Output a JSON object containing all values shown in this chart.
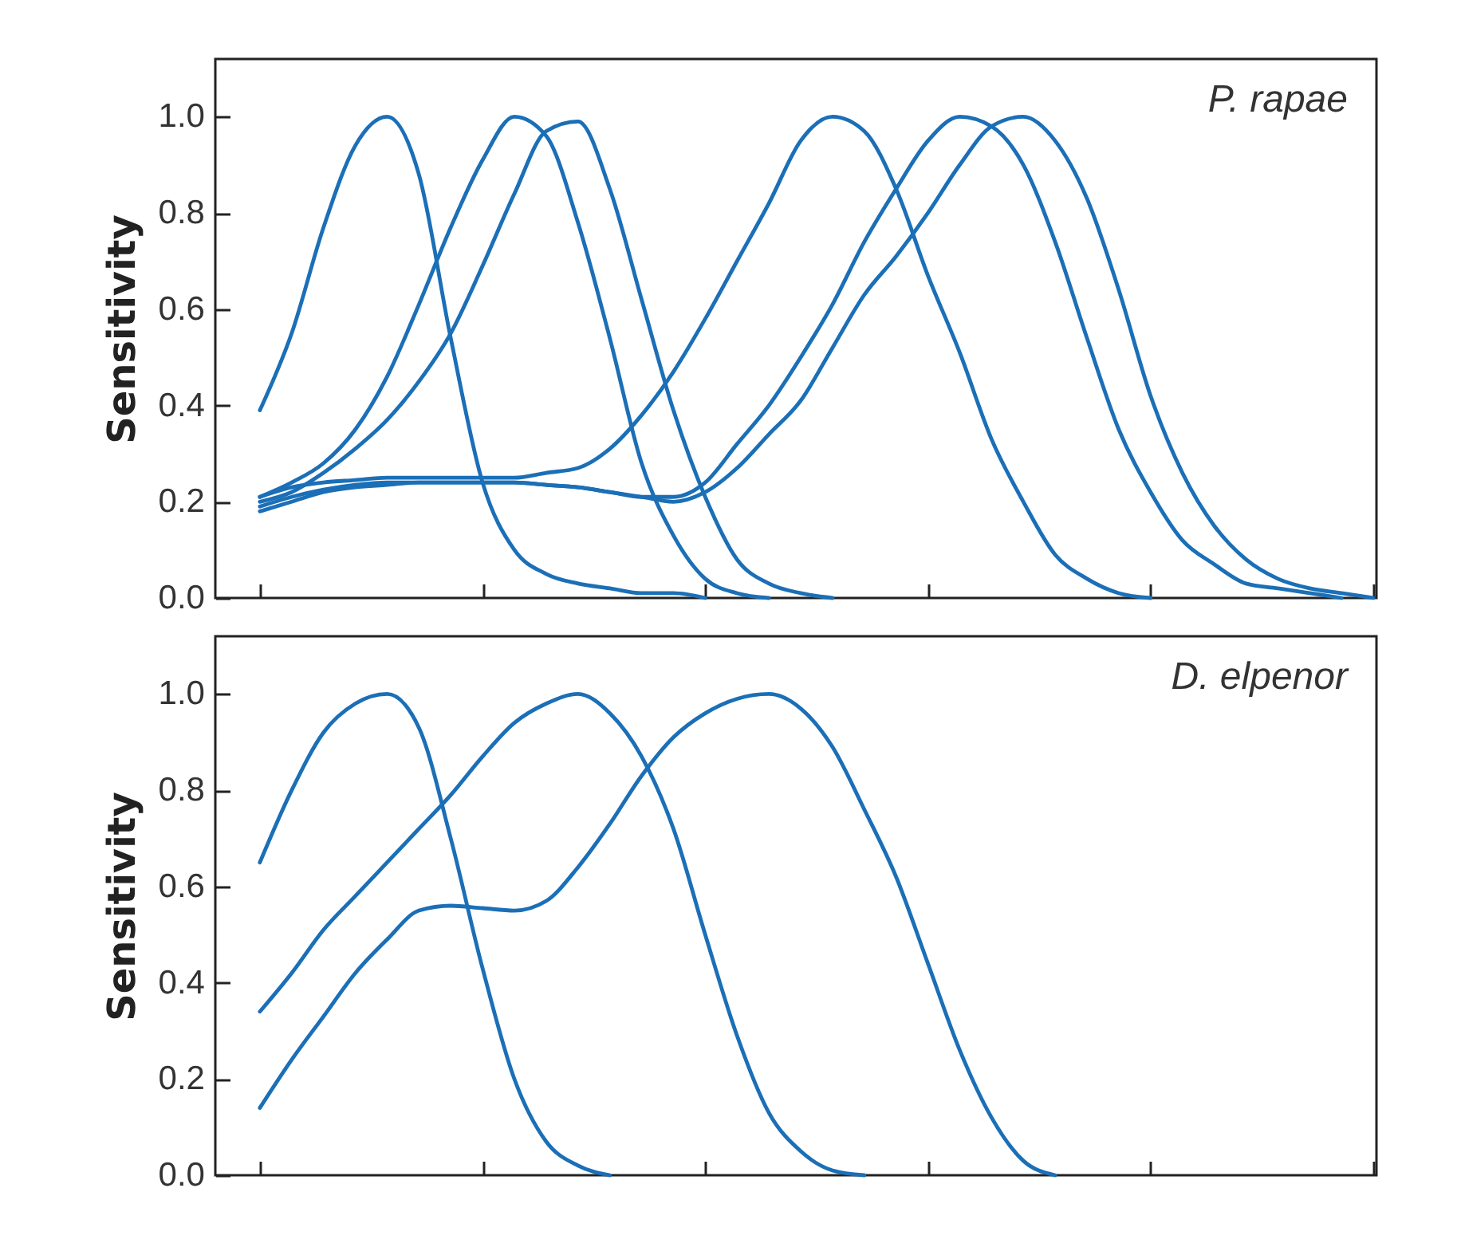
{
  "chart_data": [
    {
      "type": "line",
      "ylabel": "Sensitivity",
      "annotations": [
        "P. rapae"
      ],
      "tick_labels": "y",
      "ylim": [
        0,
        1.12
      ],
      "yticks": [
        {
          "value": 0,
          "label": "0.0"
        },
        {
          "value": 0.2,
          "label": "0.2"
        },
        {
          "value": 0.4,
          "label": "0.4"
        },
        {
          "value": 0.6,
          "label": "0.6"
        },
        {
          "value": 0.8,
          "label": "0.8"
        },
        {
          "value": 1,
          "label": "1.0"
        }
      ],
      "categories": [
        null,
        null,
        null,
        null,
        null,
        null,
        null,
        null,
        null,
        null,
        null,
        null,
        null,
        null,
        null,
        null,
        null,
        null,
        null,
        null,
        null,
        null,
        null,
        null,
        null,
        null,
        null,
        null,
        null,
        null,
        null,
        null,
        null,
        null,
        null,
        null
      ],
      "series": [
        {
          "color": "#1b6fb7",
          "values": [
            0.39,
            0.55,
            0.77,
            0.94,
            1.0,
            0.88,
            0.54,
            0.24,
            0.1,
            0.05,
            0.03,
            0.02,
            0.01,
            0.01,
            0,
            null,
            null,
            null,
            null,
            null,
            null,
            null,
            null,
            null,
            null,
            null,
            null,
            null,
            null,
            null,
            null,
            null,
            null,
            null,
            null,
            null
          ]
        },
        {
          "color": "#1b6fb7",
          "values": [
            0.21,
            0.24,
            0.28,
            0.35,
            0.46,
            0.61,
            0.77,
            0.91,
            1.0,
            0.96,
            0.78,
            0.54,
            0.28,
            0.13,
            0.04,
            0.01,
            0,
            null,
            null,
            null,
            null,
            null,
            null,
            null,
            null,
            null,
            null,
            null,
            null,
            null,
            null,
            null,
            null,
            null,
            null,
            null
          ]
        },
        {
          "color": "#1b6fb7",
          "values": [
            0.2,
            0.22,
            0.26,
            0.31,
            0.37,
            0.45,
            0.55,
            0.69,
            0.84,
            0.97,
            0.99,
            0.85,
            0.62,
            0.39,
            0.21,
            0.08,
            0.03,
            0.01,
            0,
            null,
            null,
            null,
            null,
            null,
            null,
            null,
            null,
            null,
            null,
            null,
            null,
            null,
            null,
            null,
            null,
            null
          ]
        },
        {
          "color": "#1b6fb7",
          "values": [
            0.21,
            0.23,
            0.24,
            0.245,
            0.25,
            0.25,
            0.25,
            0.25,
            0.25,
            0.26,
            0.27,
            0.31,
            0.38,
            0.47,
            0.58,
            0.7,
            0.82,
            0.95,
            1.0,
            0.97,
            0.85,
            0.67,
            0.51,
            0.33,
            0.2,
            0.09,
            0.04,
            0.01,
            0,
            null,
            null,
            null,
            null,
            null,
            null,
            null
          ]
        },
        {
          "color": "#1b6fb7",
          "values": [
            0.19,
            0.21,
            0.225,
            0.235,
            0.24,
            0.24,
            0.24,
            0.24,
            0.24,
            0.235,
            0.23,
            0.22,
            0.21,
            0.21,
            0.24,
            0.32,
            0.4,
            0.5,
            0.61,
            0.74,
            0.85,
            0.95,
            1.0,
            0.98,
            0.9,
            0.74,
            0.54,
            0.35,
            0.22,
            0.12,
            0.07,
            0.03,
            0.02,
            0.01,
            0,
            null
          ]
        },
        {
          "color": "#1b6fb7",
          "values": [
            0.18,
            0.2,
            0.22,
            0.23,
            0.235,
            0.24,
            0.24,
            0.24,
            0.24,
            0.235,
            0.23,
            0.22,
            0.21,
            0.2,
            0.22,
            0.27,
            0.34,
            0.41,
            0.52,
            0.63,
            0.71,
            0.8,
            0.9,
            0.98,
            1.0,
            0.95,
            0.83,
            0.64,
            0.42,
            0.26,
            0.15,
            0.08,
            0.04,
            0.02,
            0.01,
            0
          ]
        }
      ]
    },
    {
      "type": "line",
      "ylabel": "Sensitivity",
      "annotations": [
        "D. elpenor"
      ],
      "tick_labels": "y",
      "ylim": [
        0,
        1.12
      ],
      "yticks": [
        {
          "value": 0,
          "label": "0.0"
        },
        {
          "value": 0.2,
          "label": "0.2"
        },
        {
          "value": 0.4,
          "label": "0.4"
        },
        {
          "value": 0.6,
          "label": "0.6"
        },
        {
          "value": 0.8,
          "label": "0.8"
        },
        {
          "value": 1,
          "label": "1.0"
        }
      ],
      "categories": [
        null,
        null,
        null,
        null,
        null,
        null,
        null,
        null,
        null,
        null,
        null,
        null,
        null,
        null,
        null,
        null,
        null,
        null,
        null,
        null,
        null,
        null,
        null,
        null,
        null,
        null,
        null,
        null,
        null,
        null,
        null,
        null,
        null,
        null,
        null,
        null
      ],
      "series": [
        {
          "color": "#1b6fb7",
          "values": [
            0.65,
            0.8,
            0.92,
            0.98,
            1.0,
            0.93,
            0.7,
            0.43,
            0.2,
            0.07,
            0.02,
            0,
            null,
            null,
            null,
            null,
            null,
            null,
            null,
            null,
            null,
            null,
            null,
            null,
            null,
            null,
            null,
            null,
            null,
            null,
            null,
            null,
            null,
            null,
            null,
            null
          ]
        },
        {
          "color": "#1b6fb7",
          "values": [
            0.34,
            0.42,
            0.51,
            0.58,
            0.65,
            0.72,
            0.79,
            0.87,
            0.94,
            0.98,
            1.0,
            0.96,
            0.87,
            0.72,
            0.5,
            0.29,
            0.13,
            0.05,
            0.01,
            0,
            null,
            null,
            null,
            null,
            null,
            null,
            null,
            null,
            null,
            null,
            null,
            null,
            null,
            null,
            null,
            null
          ]
        },
        {
          "color": "#1b6fb7",
          "values": [
            0.14,
            0.24,
            0.33,
            0.42,
            0.49,
            0.55,
            0.56,
            0.555,
            0.55,
            0.57,
            0.64,
            0.73,
            0.83,
            0.91,
            0.96,
            0.99,
            1.0,
            0.97,
            0.89,
            0.76,
            0.62,
            0.44,
            0.26,
            0.12,
            0.03,
            0,
            null,
            null,
            null,
            null,
            null,
            null,
            null,
            null,
            null,
            null
          ]
        }
      ]
    }
  ]
}
